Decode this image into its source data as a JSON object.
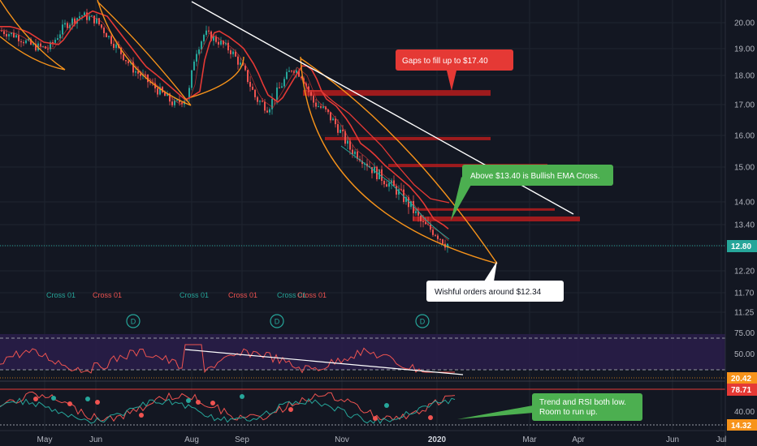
{
  "chart_data": [
    {
      "type": "candlestick",
      "price_axis": {
        "ticks": [
          "20.00",
          "19.00",
          "18.00",
          "17.00",
          "16.00",
          "15.00",
          "14.00",
          "13.40",
          "12.80",
          "12.20",
          "11.70",
          "11.25"
        ],
        "current_price": "12.80"
      },
      "x_axis": {
        "ticks": [
          "May",
          "Jun",
          "Aug",
          "Sep",
          "Nov",
          "2020",
          "Mar",
          "Apr",
          "Jun",
          "Jul"
        ]
      },
      "gap_levels": [
        17.4,
        15.9,
        15.05,
        13.8,
        13.55
      ],
      "annotations": [
        {
          "text": "Gaps to fill up to $17.40",
          "color": "#e53935"
        },
        {
          "text": "Above $13.40 is Bullish EMA Cross.",
          "color": "#4caf50"
        },
        {
          "text": "Wishful orders around $12.34",
          "color": "#ffffff"
        }
      ],
      "cross_labels": [
        {
          "text": "Cross 01",
          "color": "#26a69a"
        },
        {
          "text": "Cross 01",
          "color": "#ef5350"
        },
        {
          "text": "Cross 01",
          "color": "#26a69a"
        },
        {
          "text": "Cross 01",
          "color": "#ef5350"
        },
        {
          "text": "Cross 01",
          "color": "#26a69a"
        },
        {
          "text": "Cross 01",
          "color": "#ef5350"
        }
      ],
      "dividend_marker": "D"
    },
    {
      "type": "line",
      "name": "RSI panel",
      "levels": [
        "75.00",
        "50.00",
        "20.42"
      ],
      "current_value": "20.42"
    },
    {
      "type": "line",
      "name": "trend panel",
      "levels": [
        "78.71",
        "40.00",
        "14.32"
      ],
      "current_value": "14.32",
      "annotation": {
        "text_line1": "Trend and RSI both low.",
        "text_line2": "Room to run up.",
        "color": "#4caf50"
      }
    }
  ],
  "colors": {
    "background": "#131722",
    "grid": "#1f2430",
    "up": "#26a69a",
    "down": "#ef5350",
    "ema": "#e53935",
    "channel": "#f7931a",
    "trendline": "#ffffff",
    "rsi_band": "#2a1d4a"
  }
}
